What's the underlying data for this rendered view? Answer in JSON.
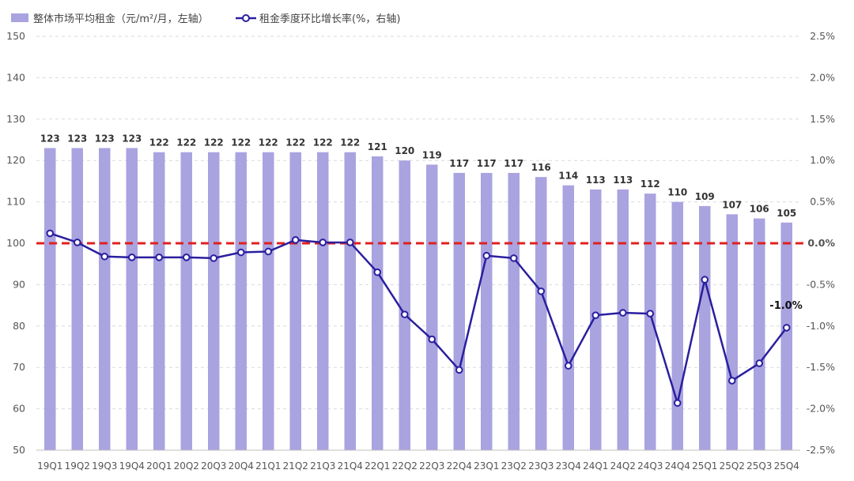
{
  "chart_data": {
    "type": "bar+line",
    "categories": [
      "19Q1",
      "19Q2",
      "19Q3",
      "19Q4",
      "20Q1",
      "20Q2",
      "20Q3",
      "20Q4",
      "21Q1",
      "21Q2",
      "21Q3",
      "21Q4",
      "22Q1",
      "22Q2",
      "22Q3",
      "22Q4",
      "23Q1",
      "23Q2",
      "23Q3",
      "23Q4",
      "24Q1",
      "24Q2",
      "24Q3",
      "24Q4",
      "25Q1",
      "25Q2",
      "25Q3",
      "25Q4"
    ],
    "series": [
      {
        "name": "整体市场平均租金（元/m²/月，左轴）",
        "type": "bar",
        "axis": "left",
        "color": "#a9a3e0",
        "values": [
          123,
          123,
          123,
          123,
          122,
          122,
          122,
          122,
          122,
          122,
          122,
          122,
          121,
          120,
          119,
          117,
          117,
          117,
          116,
          114,
          113,
          113,
          112,
          110,
          109,
          107,
          106,
          105
        ],
        "labels": [
          "123",
          "123",
          "123",
          "123",
          "122",
          "122",
          "122",
          "122",
          "122",
          "122",
          "122",
          "122",
          "121",
          "120",
          "119",
          "117",
          "117",
          "117",
          "116",
          "114",
          "113",
          "113",
          "112",
          "110",
          "109",
          "107",
          "106",
          "105"
        ]
      },
      {
        "name": "租金季度环比增长率(%，右轴)",
        "type": "line",
        "axis": "right",
        "color": "#2a1f9e",
        "values": [
          0.12,
          0.01,
          -0.16,
          -0.17,
          -0.17,
          -0.17,
          -0.18,
          -0.11,
          -0.1,
          0.04,
          0.01,
          0.01,
          -0.35,
          -0.86,
          -1.16,
          -1.53,
          -0.15,
          -0.18,
          -0.58,
          -1.48,
          -0.87,
          -0.84,
          -0.85,
          -1.93,
          -0.44,
          -1.66,
          -1.45,
          -1.02
        ]
      }
    ],
    "y_left": {
      "min": 50,
      "max": 150,
      "ticks": [
        "50",
        "60",
        "70",
        "80",
        "90",
        "100",
        "110",
        "120",
        "130",
        "140",
        "150"
      ]
    },
    "y_right": {
      "min": -2.5,
      "max": 2.5,
      "ticks": [
        "-2.5%",
        "-2.0%",
        "-1.5%",
        "-1.0%",
        "-0.5%",
        "0.0%",
        "0.5%",
        "1.0%",
        "1.5%",
        "2.0%",
        "2.5%"
      ]
    },
    "reference_line": {
      "value": 0,
      "axis": "right",
      "label": "0.0%",
      "color": "#e02020"
    },
    "last_point_label": "-1.0%",
    "grid": true,
    "legend_position": "top-left"
  }
}
